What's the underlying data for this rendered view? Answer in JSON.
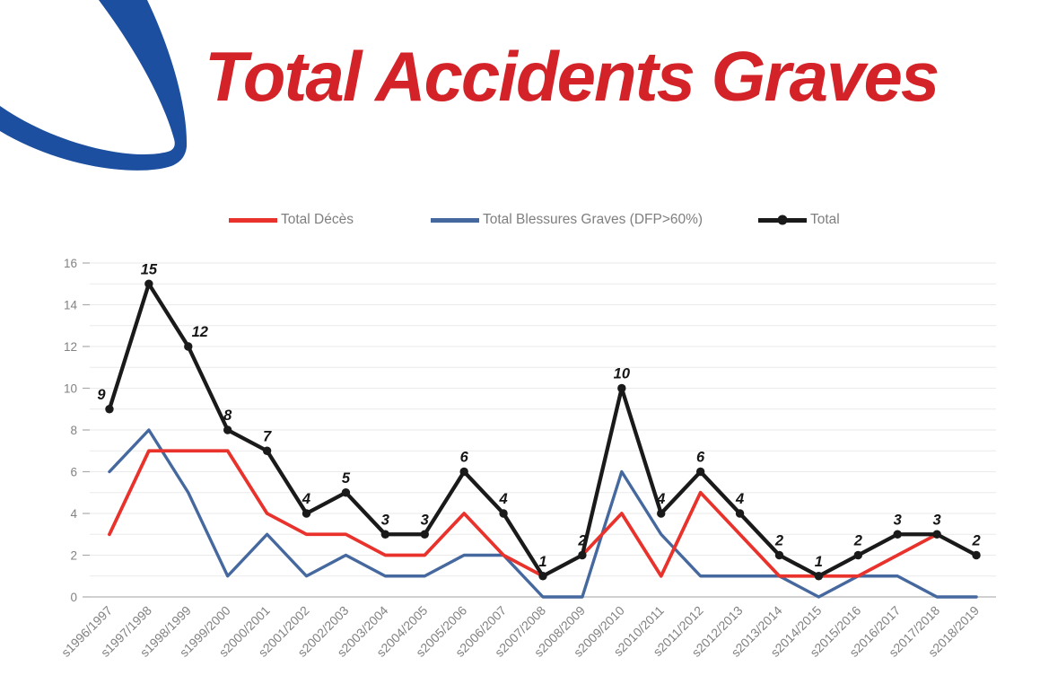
{
  "slide": {
    "title": "Total Accidents Graves",
    "title_color": "#d42328",
    "logo_color": "#1c4f9f"
  },
  "chart_data": {
    "type": "line",
    "title": "Total Accidents Graves",
    "categories": [
      "s1996/1997",
      "s1997/1998",
      "s1998/1999",
      "s1999/2000",
      "s2000/2001",
      "s2001/2002",
      "s2002/2003",
      "s2003/2004",
      "s2004/2005",
      "s2005/2006",
      "s2006/2007",
      "s2007/2008",
      "s2008/2009",
      "s2009/2010",
      "s2010/2011",
      "s2011/2012",
      "s2012/2013",
      "s2013/2014",
      "s2014/2015",
      "s2015/2016",
      "s2016/2017",
      "s2017/2018",
      "s2018/2019"
    ],
    "series": [
      {
        "name": "Total Décès",
        "color": "#e8322b",
        "markers": false,
        "data_labels": false,
        "values": [
          3,
          7,
          7,
          7,
          4,
          3,
          3,
          2,
          2,
          4,
          2,
          1,
          2,
          4,
          1,
          5,
          3,
          1,
          1,
          1,
          2,
          3,
          2
        ]
      },
      {
        "name": "Total Blessures Graves (DFP>60%)",
        "color": "#45689e",
        "markers": false,
        "data_labels": false,
        "values": [
          6,
          8,
          5,
          1,
          3,
          1,
          2,
          1,
          1,
          2,
          2,
          0,
          0,
          6,
          3,
          1,
          1,
          1,
          0,
          1,
          1,
          0,
          0
        ]
      },
      {
        "name": "Total",
        "color": "#1a1a1a",
        "markers": true,
        "data_labels": true,
        "values": [
          9,
          15,
          12,
          8,
          7,
          4,
          5,
          3,
          3,
          6,
          4,
          1,
          2,
          10,
          4,
          6,
          4,
          2,
          1,
          2,
          3,
          3,
          2
        ]
      }
    ],
    "ylim": [
      0,
      16
    ],
    "yticks": [
      0,
      2,
      4,
      6,
      8,
      10,
      12,
      14,
      16
    ],
    "xlabel": "",
    "ylabel": "",
    "grid": "horizontal-minor-every-1",
    "legend_position": "top",
    "axis_text_color": "#828282"
  }
}
